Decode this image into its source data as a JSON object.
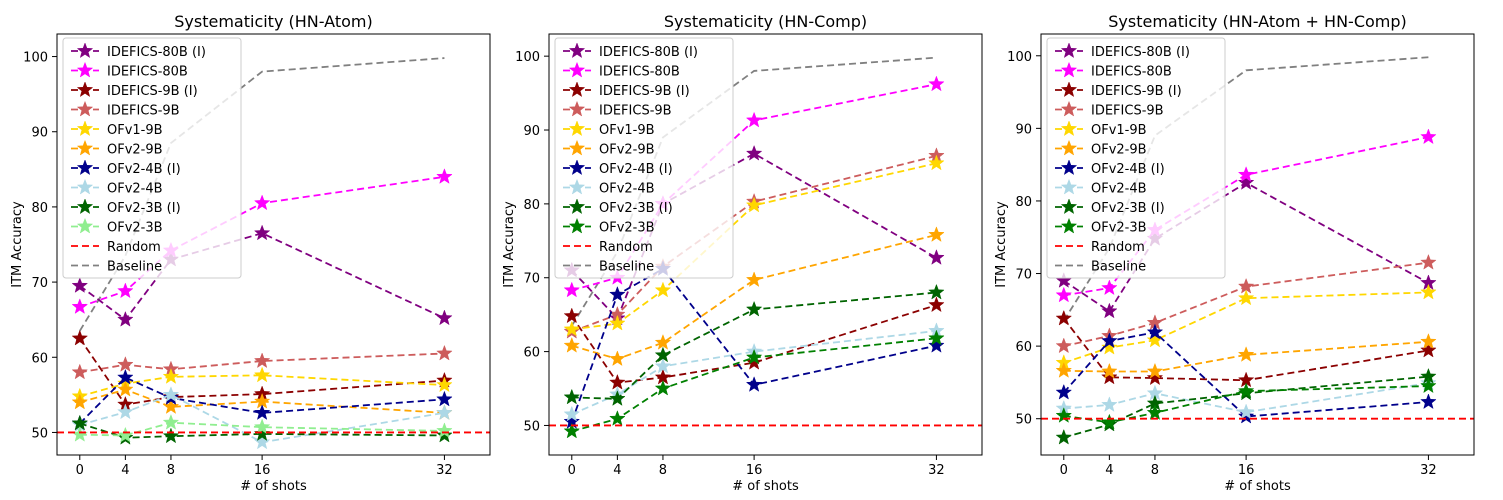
{
  "chart_data": [
    {
      "type": "line",
      "title": "Systematicity (HN-Atom)",
      "xlabel": "# of shots",
      "ylabel": "ITM Accuracy",
      "x": [
        0,
        4,
        8,
        16,
        32
      ],
      "xticks": [
        "0",
        "4",
        "8",
        "16",
        "32"
      ],
      "yticks": [
        "50",
        "60",
        "70",
        "80",
        "90",
        "100"
      ],
      "xlim": [
        -2,
        36
      ],
      "ylim": [
        47,
        103
      ],
      "grid": false,
      "legend": "top-left",
      "random": 50,
      "baseline": [
        63.5,
        73.5,
        88.5,
        98,
        99.8
      ],
      "series": [
        {
          "name": "IDEFICS-80B (I)",
          "color": "#800080",
          "values": [
            69.5,
            65.0,
            73.0,
            76.5,
            65.2
          ]
        },
        {
          "name": "IDEFICS-80B",
          "color": "#ff00ff",
          "values": [
            66.7,
            68.8,
            74.2,
            80.5,
            84.0
          ]
        },
        {
          "name": "IDEFICS-9B (I)",
          "color": "#8b0000",
          "values": [
            62.5,
            53.7,
            54.7,
            55.1,
            56.9
          ]
        },
        {
          "name": "IDEFICS-9B",
          "color": "#cd5c5c",
          "values": [
            58.0,
            59.0,
            58.4,
            59.5,
            60.5
          ]
        },
        {
          "name": "OFv1-9B",
          "color": "#ffd700",
          "values": [
            54.8,
            56.5,
            57.4,
            57.6,
            56.3
          ]
        },
        {
          "name": "OFv2-9B",
          "color": "#ffa500",
          "values": [
            54.0,
            55.7,
            53.4,
            54.1,
            52.6
          ]
        },
        {
          "name": "OFv2-4B (I)",
          "color": "#00008b",
          "values": [
            51.2,
            57.3,
            54.6,
            52.6,
            54.4
          ]
        },
        {
          "name": "OFv2-4B",
          "color": "#add8e6",
          "values": [
            51.0,
            52.7,
            55.0,
            48.7,
            52.6
          ]
        },
        {
          "name": "OFv2-3B (I)",
          "color": "#006400",
          "values": [
            51.2,
            49.3,
            49.5,
            49.8,
            49.6
          ]
        },
        {
          "name": "OFv2-3B",
          "color": "#90ee90",
          "values": [
            49.7,
            49.6,
            51.3,
            50.7,
            50.2
          ]
        }
      ]
    },
    {
      "type": "line",
      "title": "Systematicity (HN-Comp)",
      "xlabel": "# of shots",
      "ylabel": "ITM Accuracy",
      "x": [
        0,
        4,
        8,
        16,
        32
      ],
      "xticks": [
        "0",
        "4",
        "8",
        "16",
        "32"
      ],
      "yticks": [
        "50",
        "60",
        "70",
        "80",
        "90",
        "100"
      ],
      "xlim": [
        -2,
        36
      ],
      "ylim": [
        46,
        103
      ],
      "grid": false,
      "legend": "top-left",
      "random": 50,
      "baseline": [
        63.5,
        73.5,
        89,
        98,
        99.8
      ],
      "series": [
        {
          "name": "IDEFICS-80B (I)",
          "color": "#800080",
          "values": [
            71.0,
            64.5,
            80.0,
            86.8,
            72.7
          ]
        },
        {
          "name": "IDEFICS-80B",
          "color": "#ff00ff",
          "values": [
            68.3,
            70.0,
            80.0,
            91.3,
            96.2
          ]
        },
        {
          "name": "IDEFICS-9B (I)",
          "color": "#8b0000",
          "values": [
            64.8,
            55.8,
            56.5,
            58.5,
            66.3
          ]
        },
        {
          "name": "IDEFICS-9B",
          "color": "#cd5c5c",
          "values": [
            62.7,
            65.0,
            71.5,
            80.3,
            86.5
          ]
        },
        {
          "name": "OFv1-9B",
          "color": "#ffd700",
          "values": [
            63.0,
            63.8,
            68.3,
            79.8,
            85.5
          ]
        },
        {
          "name": "OFv2-9B",
          "color": "#ffa500",
          "values": [
            60.8,
            59.0,
            61.2,
            69.7,
            75.8
          ]
        },
        {
          "name": "OFv2-4B (I)",
          "color": "#00008b",
          "values": [
            50.5,
            67.7,
            71.2,
            55.5,
            60.8
          ]
        },
        {
          "name": "OFv2-4B",
          "color": "#add8e6",
          "values": [
            51.5,
            54.2,
            58.0,
            60.0,
            62.8
          ]
        },
        {
          "name": "OFv2-3B (I)",
          "color": "#006400",
          "values": [
            53.8,
            53.6,
            59.5,
            65.7,
            68.0
          ]
        },
        {
          "name": "OFv2-3B",
          "color": "#008000",
          "values": [
            49.2,
            50.9,
            55.0,
            59.2,
            61.8
          ]
        }
      ]
    },
    {
      "type": "line",
      "title": "Systematicity (HN-Atom + HN-Comp)",
      "xlabel": "# of shots",
      "ylabel": "ITM Accuracy",
      "x": [
        0,
        4,
        8,
        16,
        32
      ],
      "xticks": [
        "0",
        "4",
        "8",
        "16",
        "32"
      ],
      "yticks": [
        "50",
        "60",
        "70",
        "80",
        "90",
        "100"
      ],
      "xlim": [
        -2,
        36
      ],
      "ylim": [
        45,
        103
      ],
      "grid": false,
      "legend": "top-left",
      "random": 50,
      "baseline": [
        63.5,
        73.5,
        89,
        98,
        99.8
      ],
      "series": [
        {
          "name": "IDEFICS-80B (I)",
          "color": "#800080",
          "values": [
            69.0,
            64.8,
            74.8,
            82.5,
            68.7
          ]
        },
        {
          "name": "IDEFICS-80B",
          "color": "#ff00ff",
          "values": [
            67.0,
            68.0,
            76.0,
            83.6,
            88.8
          ]
        },
        {
          "name": "IDEFICS-9B (I)",
          "color": "#8b0000",
          "values": [
            63.8,
            55.7,
            55.6,
            55.3,
            59.4
          ]
        },
        {
          "name": "IDEFICS-9B",
          "color": "#cd5c5c",
          "values": [
            60.0,
            61.4,
            63.2,
            68.2,
            71.5
          ]
        },
        {
          "name": "OFv1-9B",
          "color": "#ffd700",
          "values": [
            57.7,
            59.8,
            60.8,
            66.6,
            67.4
          ]
        },
        {
          "name": "OFv2-9B",
          "color": "#ffa500",
          "values": [
            56.6,
            56.5,
            56.5,
            58.8,
            60.6
          ]
        },
        {
          "name": "OFv2-4B (I)",
          "color": "#00008b",
          "values": [
            53.6,
            60.7,
            61.9,
            50.3,
            52.3
          ]
        },
        {
          "name": "OFv2-4B",
          "color": "#add8e6",
          "values": [
            51.4,
            51.9,
            53.5,
            50.9,
            54.9
          ]
        },
        {
          "name": "OFv2-3B (I)",
          "color": "#006400",
          "values": [
            47.4,
            49.2,
            52.1,
            53.5,
            55.8
          ]
        },
        {
          "name": "OFv2-3B",
          "color": "#008000",
          "values": [
            50.4,
            49.5,
            50.8,
            53.8,
            54.5
          ]
        }
      ]
    }
  ],
  "legend_extra": {
    "random_label": "Random",
    "baseline_label": "Baseline",
    "random_color": "#ff0000",
    "baseline_color": "#808080"
  }
}
